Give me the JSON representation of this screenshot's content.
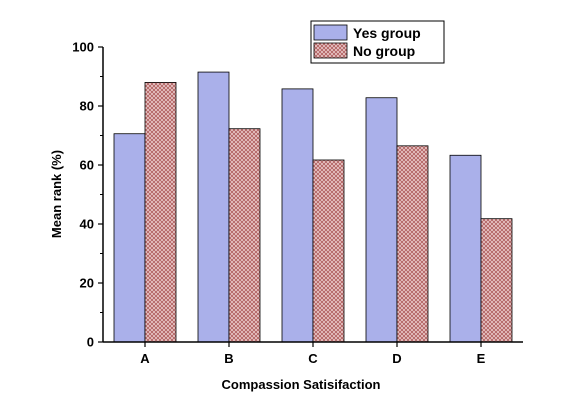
{
  "chart_data": {
    "type": "bar",
    "title": "",
    "xlabel": "Compassion Satisifaction",
    "ylabel": "Mean rank (%)",
    "ylim": [
      0,
      100
    ],
    "yticks": [
      0,
      20,
      40,
      60,
      80,
      100
    ],
    "categories": [
      "A",
      "B",
      "C",
      "D",
      "E"
    ],
    "series": [
      {
        "name": "Yes group",
        "values": [
          70.6,
          91.5,
          85.8,
          82.8,
          63.3
        ],
        "color": "#aab0ea"
      },
      {
        "name": "No group",
        "values": [
          88.0,
          72.3,
          61.7,
          66.5,
          41.8
        ],
        "color": "#d8a4a4"
      }
    ],
    "legend_position": "top-right",
    "grid": false
  }
}
